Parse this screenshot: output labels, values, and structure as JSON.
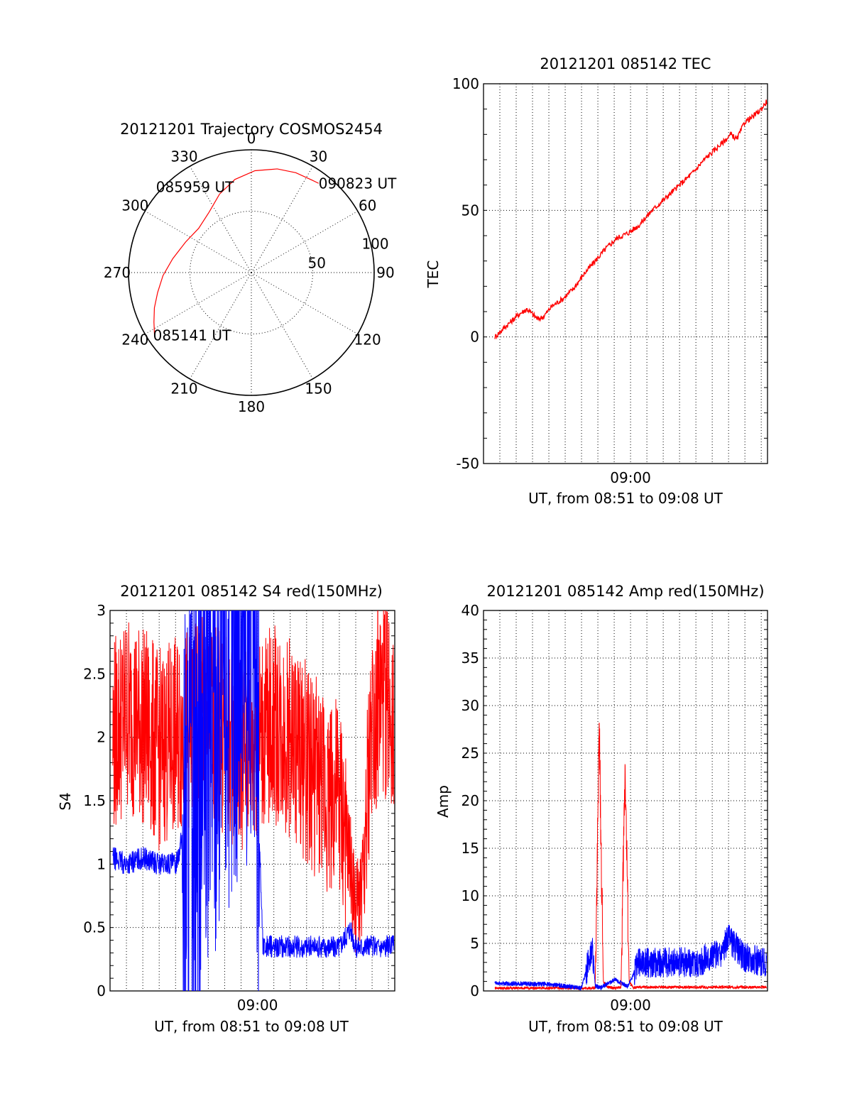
{
  "chart_data": [
    {
      "id": "trajectory",
      "type": "polar",
      "title": "20121201 Trajectory COSMOS2454",
      "azimuth_labels": [
        "0",
        "30",
        "60",
        "90",
        "120",
        "150",
        "180",
        "210",
        "240",
        "270",
        "300",
        "330"
      ],
      "radial_labels": [
        "50",
        "100"
      ],
      "rlim": [
        0,
        100
      ],
      "grid": true,
      "trajectory": {
        "color": "#ff0000",
        "points": [
          {
            "az": 237,
            "r": 94
          },
          {
            "az": 243,
            "r": 89
          },
          {
            "az": 250,
            "r": 84
          },
          {
            "az": 258,
            "r": 78
          },
          {
            "az": 268,
            "r": 72
          },
          {
            "az": 280,
            "r": 65
          },
          {
            "az": 295,
            "r": 59
          },
          {
            "az": 310,
            "r": 56
          },
          {
            "az": 325,
            "r": 60
          },
          {
            "az": 338,
            "r": 69
          },
          {
            "az": 350,
            "r": 77
          },
          {
            "az": 2,
            "r": 83
          },
          {
            "az": 14,
            "r": 87
          },
          {
            "az": 24,
            "r": 89
          },
          {
            "az": 33,
            "r": 90
          },
          {
            "az": 37,
            "r": 91
          }
        ],
        "labels": [
          {
            "text": "085141 UT",
            "az": 237,
            "r": 94
          },
          {
            "text": "085959 UT",
            "az": 310,
            "r": 56
          },
          {
            "text": "090823 UT",
            "az": 37,
            "r": 91
          }
        ]
      }
    },
    {
      "id": "tec",
      "type": "line",
      "title": "20121201 085142 TEC",
      "xlabel": "UT, from 08:51 to 09:08 UT",
      "ylabel": "TEC",
      "x_tick_label": "09:00",
      "xlim": [
        "08:51:00",
        "09:08:23"
      ],
      "ylim": [
        -50,
        100
      ],
      "yticks": [
        -50,
        0,
        50,
        100
      ],
      "grid": true,
      "series": [
        {
          "color": "#ff0000",
          "x": [
            "08:51:42",
            "08:52:10",
            "08:52:40",
            "08:53:10",
            "08:53:40",
            "08:54:20",
            "08:54:40",
            "08:55:10",
            "08:55:50",
            "08:56:30",
            "08:57:10",
            "08:57:50",
            "08:58:30",
            "08:59:10",
            "08:59:50",
            "09:00:30",
            "09:01:10",
            "09:01:50",
            "09:02:30",
            "09:03:10",
            "09:03:50",
            "09:04:30",
            "09:05:10",
            "09:05:50",
            "09:06:10",
            "09:06:30",
            "09:07:00",
            "09:07:30",
            "09:08:00",
            "09:08:20"
          ],
          "values": [
            0,
            3,
            6,
            9,
            11,
            7,
            8,
            12,
            15,
            19,
            25,
            30,
            35,
            39,
            41,
            44,
            49,
            53,
            57,
            61,
            65,
            70,
            74,
            78,
            80,
            78,
            85,
            87,
            90,
            93
          ]
        }
      ]
    },
    {
      "id": "s4",
      "type": "line",
      "title": "20121201 085142 S4 red(150MHz)",
      "xlabel": "UT, from 08:51 to 09:08 UT",
      "ylabel": "S4",
      "x_tick_label": "09:00",
      "xlim": [
        "08:51:00",
        "09:08:23"
      ],
      "ylim": [
        0,
        3
      ],
      "yticks": [
        "0",
        "0.5",
        "1",
        "1.5",
        "2",
        "2.5",
        "3"
      ],
      "grid": true,
      "series": [
        {
          "color": "#ff0000",
          "x": [
            "08:51:10",
            "08:52:00",
            "08:53:00",
            "08:54:00",
            "08:55:00",
            "08:56:00",
            "08:57:00",
            "08:58:00",
            "08:59:00",
            "09:00:00",
            "09:01:00",
            "09:02:00",
            "09:03:00",
            "09:04:00",
            "09:05:00",
            "09:05:40",
            "09:06:00",
            "09:06:30",
            "09:07:00",
            "09:08:00",
            "09:08:20"
          ],
          "values": [
            2.0,
            2.2,
            2.1,
            1.9,
            2.0,
            2.1,
            2.2,
            2.0,
            1.9,
            2.0,
            2.1,
            2.0,
            1.8,
            1.6,
            1.5,
            1.0,
            0.6,
            0.9,
            2.2,
            2.3,
            2.2
          ]
        },
        {
          "color": "#0000ff",
          "x": [
            "08:51:10",
            "08:52:00",
            "08:53:00",
            "08:54:00",
            "08:55:00",
            "08:56:00",
            "08:57:00",
            "08:58:00",
            "08:59:00",
            "08:59:40",
            "09:00:20",
            "09:01:00",
            "09:02:00",
            "09:03:00",
            "09:04:00",
            "09:05:00",
            "09:05:40",
            "09:06:00",
            "09:07:00",
            "09:08:20"
          ],
          "values": [
            1.05,
            1.0,
            1.05,
            1.0,
            1.0,
            1.5,
            2.0,
            2.5,
            2.8,
            3.0,
            0.35,
            0.35,
            0.35,
            0.35,
            0.35,
            0.35,
            0.5,
            0.35,
            0.35,
            0.35
          ]
        }
      ]
    },
    {
      "id": "amp",
      "type": "line",
      "title": "20121201 085142 Amp red(150MHz)",
      "xlabel": "UT, from 08:51 to 09:08 UT",
      "ylabel": "Amp",
      "x_tick_label": "09:00",
      "xlim": [
        "08:51:00",
        "09:08:23"
      ],
      "ylim": [
        0,
        40
      ],
      "yticks": [
        0,
        5,
        10,
        15,
        20,
        25,
        30,
        35,
        40
      ],
      "grid": true,
      "series": [
        {
          "color": "#ff0000",
          "x": [
            "08:51:42",
            "08:57:00",
            "08:57:50",
            "08:58:05",
            "08:58:20",
            "08:58:35",
            "08:59:00",
            "08:59:25",
            "08:59:40",
            "08:59:55",
            "09:00:10",
            "09:00:30",
            "09:08:20"
          ],
          "values": [
            0.3,
            0.3,
            0.3,
            27.5,
            1.0,
            0.4,
            0.3,
            0.4,
            24.0,
            1.0,
            0.3,
            0.4,
            0.4
          ]
        },
        {
          "color": "#0000ff",
          "x": [
            "08:51:42",
            "08:55:00",
            "08:57:00",
            "08:57:40",
            "08:57:50",
            "08:58:10",
            "08:59:00",
            "08:59:50",
            "09:00:30",
            "09:02:00",
            "09:04:00",
            "09:05:30",
            "09:06:00",
            "09:07:00",
            "09:08:20"
          ],
          "values": [
            0.8,
            0.7,
            0.3,
            4.5,
            0.5,
            0.3,
            1.2,
            0.5,
            3.0,
            3.0,
            3.0,
            4.0,
            5.5,
            3.5,
            3.0
          ]
        }
      ]
    }
  ]
}
